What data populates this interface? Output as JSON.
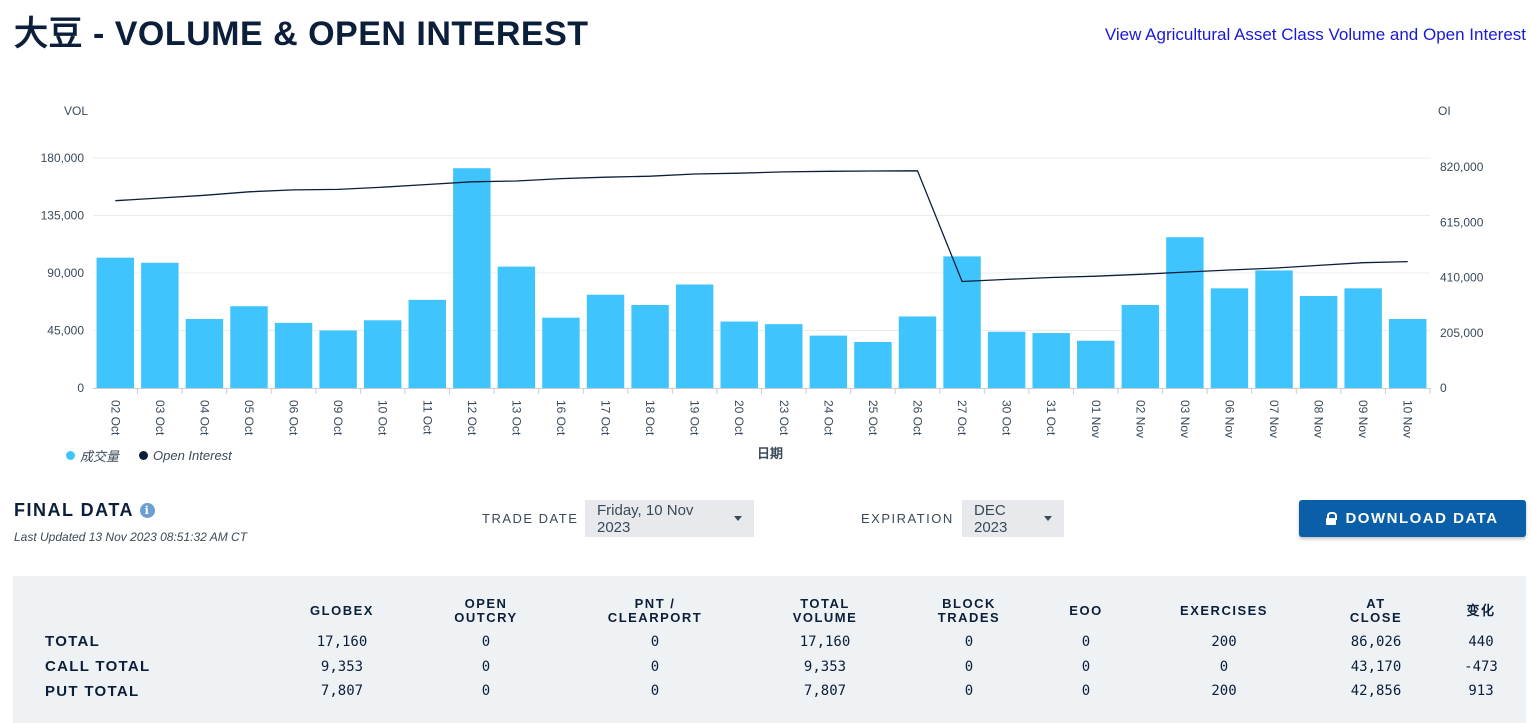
{
  "header": {
    "title": "大豆 - VOLUME & OPEN INTEREST",
    "asset_link": "View Agricultural Asset Class Volume and Open Interest"
  },
  "colors": {
    "volume_bar": "#3fc4fd",
    "oi_line": "#0b1f3a",
    "accent": "#0a5fa8"
  },
  "chart_data": {
    "type": "bar",
    "xlabel": "日期",
    "y_left_label": "VOL",
    "y_right_label": "OI",
    "left_ticks": [
      "0",
      "45,000",
      "90,000",
      "135,000",
      "180,000"
    ],
    "right_ticks": [
      "0",
      "205,000",
      "410,000",
      "615,000",
      "820,000"
    ],
    "ylim_left": [
      0,
      180000
    ],
    "ylim_right": [
      0,
      820000
    ],
    "categories": [
      "02 Oct",
      "03 Oct",
      "04 Oct",
      "05 Oct",
      "06 Oct",
      "09 Oct",
      "10 Oct",
      "11 Oct",
      "12 Oct",
      "13 Oct",
      "16 Oct",
      "17 Oct",
      "18 Oct",
      "19 Oct",
      "20 Oct",
      "23 Oct",
      "24 Oct",
      "25 Oct",
      "26 Oct",
      "27 Oct",
      "30 Oct",
      "31 Oct",
      "01 Nov",
      "02 Nov",
      "03 Nov",
      "06 Nov",
      "07 Nov",
      "08 Nov",
      "09 Nov",
      "10 Nov"
    ],
    "series": [
      {
        "name": "成交量",
        "kind": "bar",
        "axis": "left",
        "values": [
          102000,
          98000,
          54000,
          64000,
          51000,
          45000,
          53000,
          69000,
          172000,
          95000,
          55000,
          73000,
          65000,
          81000,
          52000,
          50000,
          41000,
          36000,
          56000,
          103000,
          44000,
          43000,
          37000,
          65000,
          118000,
          78000,
          92000,
          72000,
          78000,
          54000
        ]
      },
      {
        "name": "Open Interest",
        "kind": "line",
        "axis": "right",
        "values": [
          695000,
          705000,
          715000,
          728000,
          735000,
          737000,
          745000,
          755000,
          765000,
          768000,
          777000,
          782000,
          786000,
          794000,
          797000,
          802000,
          804000,
          805000,
          806000,
          395000,
          403000,
          410000,
          415000,
          422000,
          430000,
          438000,
          445000,
          455000,
          465000,
          469000
        ]
      }
    ],
    "legend_position": "bottom-left",
    "grid": true
  },
  "final_data": {
    "title": "FINAL DATA",
    "last_updated": "Last Updated 13 Nov 2023 08:51:32 AM CT",
    "trade_date_label": "TRADE DATE",
    "trade_date_value": "Friday, 10 Nov 2023",
    "expiration_label": "EXPIRATION",
    "expiration_value": "DEC 2023",
    "download_label": "DOWNLOAD DATA"
  },
  "table": {
    "columns": [
      "GLOBEX",
      "OPEN\nOUTCRY",
      "PNT /\nCLEARPORT",
      "TOTAL\nVOLUME",
      "BLOCK\nTRADES",
      "EOO",
      "EXERCISES",
      "AT\nCLOSE",
      "变化"
    ],
    "rows": [
      {
        "label": "TOTAL",
        "values": [
          "17,160",
          "0",
          "0",
          "17,160",
          "0",
          "0",
          "200",
          "86,026",
          "440"
        ]
      },
      {
        "label": "CALL TOTAL",
        "values": [
          "9,353",
          "0",
          "0",
          "9,353",
          "0",
          "0",
          "0",
          "43,170",
          "-473"
        ]
      },
      {
        "label": "PUT TOTAL",
        "values": [
          "7,807",
          "0",
          "0",
          "7,807",
          "0",
          "0",
          "200",
          "42,856",
          "913"
        ]
      }
    ]
  }
}
